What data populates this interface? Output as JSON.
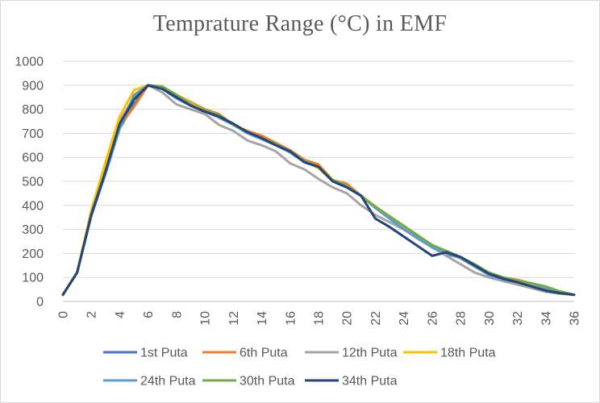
{
  "chart_data": {
    "type": "line",
    "title": "Temprature Range (°C) in EMF",
    "xlabel": "",
    "ylabel": "",
    "ylim": [
      0,
      1000
    ],
    "yticks": [
      0,
      100,
      200,
      300,
      400,
      500,
      600,
      700,
      800,
      900,
      1000
    ],
    "xlim": [
      0,
      36
    ],
    "xticks": [
      0,
      2,
      4,
      6,
      8,
      10,
      12,
      14,
      16,
      18,
      20,
      22,
      24,
      26,
      28,
      30,
      32,
      34,
      36
    ],
    "grid": "horizontal",
    "legend_position": "bottom",
    "x": [
      0,
      1,
      2,
      3,
      4,
      5,
      6,
      7,
      8,
      9,
      10,
      11,
      12,
      13,
      14,
      15,
      16,
      17,
      18,
      19,
      20,
      21,
      22,
      23,
      24,
      25,
      26,
      27,
      28,
      29,
      30,
      31,
      32,
      33,
      34,
      35,
      36
    ],
    "series": [
      {
        "name": "1st Puta",
        "color": "#4472C4",
        "values": [
          28,
          120,
          360,
          540,
          720,
          820,
          900,
          885,
          850,
          820,
          790,
          770,
          740,
          705,
          680,
          655,
          625,
          580,
          560,
          500,
          475,
          440,
          390,
          345,
          305,
          270,
          225,
          195,
          185,
          150,
          115,
          95,
          80,
          60,
          45,
          35,
          28
        ]
      },
      {
        "name": "6th Puta",
        "color": "#ED7D31",
        "values": [
          28,
          120,
          360,
          550,
          730,
          810,
          900,
          890,
          860,
          830,
          800,
          780,
          735,
          710,
          690,
          660,
          630,
          590,
          570,
          505,
          490,
          440,
          395,
          350,
          310,
          270,
          230,
          210,
          185,
          150,
          120,
          100,
          90,
          75,
          55,
          40,
          28
        ]
      },
      {
        "name": "12th Puta",
        "color": "#A5A5A5",
        "values": [
          28,
          120,
          360,
          560,
          750,
          850,
          900,
          870,
          820,
          800,
          780,
          735,
          710,
          670,
          650,
          625,
          575,
          550,
          510,
          475,
          450,
          400,
          360,
          330,
          300,
          260,
          225,
          190,
          155,
          120,
          100,
          85,
          70,
          55,
          40,
          32,
          28
        ]
      },
      {
        "name": "18th Puta",
        "color": "#FFC000",
        "values": [
          28,
          120,
          380,
          580,
          770,
          880,
          900,
          890,
          860,
          825,
          795,
          770,
          735,
          705,
          680,
          650,
          625,
          585,
          555,
          500,
          480,
          440,
          395,
          350,
          310,
          275,
          230,
          205,
          180,
          145,
          115,
          95,
          80,
          65,
          50,
          38,
          28
        ]
      },
      {
        "name": "24th Puta",
        "color": "#5B9BD5",
        "values": [
          28,
          120,
          355,
          530,
          720,
          860,
          900,
          885,
          845,
          815,
          790,
          765,
          735,
          700,
          675,
          650,
          620,
          580,
          560,
          500,
          475,
          440,
          390,
          345,
          300,
          265,
          225,
          200,
          180,
          145,
          110,
          90,
          80,
          65,
          50,
          38,
          28
        ]
      },
      {
        "name": "30th Puta",
        "color": "#70AD47",
        "values": [
          28,
          120,
          365,
          545,
          735,
          845,
          900,
          895,
          860,
          820,
          795,
          775,
          735,
          705,
          680,
          655,
          625,
          585,
          560,
          505,
          480,
          440,
          395,
          355,
          315,
          275,
          235,
          210,
          185,
          155,
          120,
          100,
          85,
          75,
          62,
          42,
          28
        ]
      },
      {
        "name": "34th Puta",
        "color": "#264478",
        "values": [
          28,
          120,
          360,
          540,
          740,
          840,
          900,
          885,
          850,
          815,
          790,
          770,
          740,
          705,
          680,
          650,
          625,
          580,
          560,
          500,
          475,
          440,
          345,
          310,
          270,
          230,
          190,
          205,
          185,
          150,
          115,
          95,
          80,
          62,
          45,
          35,
          28
        ]
      }
    ]
  }
}
